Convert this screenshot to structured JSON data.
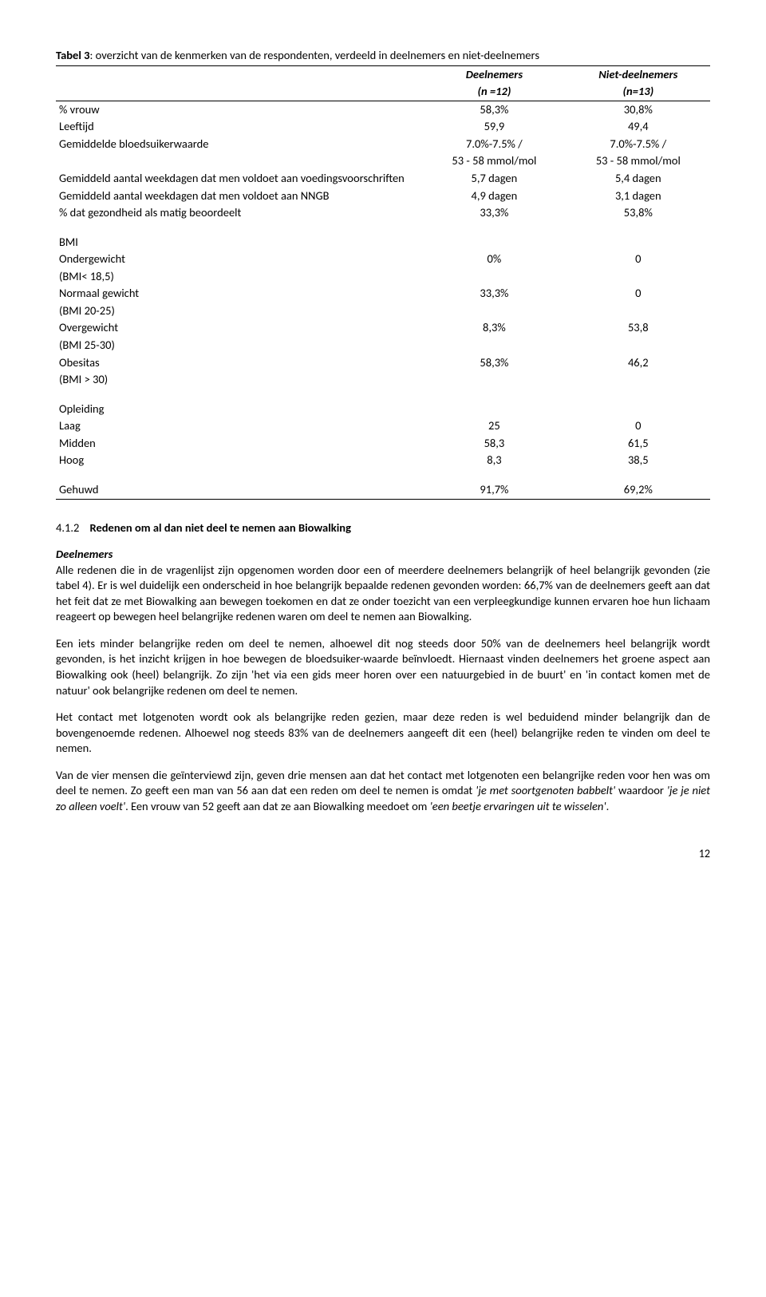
{
  "caption": {
    "label": "Tabel 3",
    "text": ": overzicht van de kenmerken van de respondenten, verdeeld in deelnemers en niet-deelnemers"
  },
  "table": {
    "headers": {
      "c1": "",
      "c2a": "Deelnemers",
      "c2b": "(n =12)",
      "c3a": "Niet-deelnemers",
      "c3b": "(n=13)"
    },
    "rows1": [
      {
        "c1": "% vrouw",
        "c2": "58,3%",
        "c3": "30,8%"
      },
      {
        "c1": "Leeftijd",
        "c2": "59,9",
        "c3": "49,4"
      },
      {
        "c1": "Gemiddelde bloedsuikerwaarde",
        "c2": "7.0%-7.5% /",
        "c3": "7.0%-7.5% /"
      },
      {
        "c1": "",
        "c2": "53 - 58 mmol/mol",
        "c3": "53 - 58 mmol/mol"
      },
      {
        "c1": "Gemiddeld aantal weekdagen dat men voldoet aan voedingsvoorschriften",
        "c2": "5,7 dagen",
        "c3": "5,4 dagen"
      },
      {
        "c1": "Gemiddeld aantal weekdagen dat men voldoet aan NNGB",
        "c2": "4,9 dagen",
        "c3": "3,1 dagen"
      },
      {
        "c1": "% dat gezondheid als matig beoordeelt",
        "c2": "33,3%",
        "c3": "53,8%"
      }
    ],
    "bmi_label": "BMI",
    "rows_bmi": [
      {
        "c1a": "Ondergewicht",
        "c1b": "(BMI< 18,5)",
        "c2": "0%",
        "c3": "0"
      },
      {
        "c1a": "Normaal  gewicht",
        "c1b": "(BMI 20-25)",
        "c2": "33,3%",
        "c3": "0"
      },
      {
        "c1a": "Overgewicht",
        "c1b": "(BMI 25-30)",
        "c2": "8,3%",
        "c3": "53,8"
      },
      {
        "c1a": "Obesitas",
        "c1b": "(BMI > 30)",
        "c2": "58,3%",
        "c3": "46,2"
      }
    ],
    "opl_label": "Opleiding",
    "rows_opl": [
      {
        "c1": "Laag",
        "c2": "25",
        "c3": "0"
      },
      {
        "c1": "Midden",
        "c2": "58,3",
        "c3": "61,5"
      },
      {
        "c1": "Hoog",
        "c2": "8,3",
        "c3": "38,5"
      }
    ],
    "gehuwd": {
      "c1": "Gehuwd",
      "c2": "91,7%",
      "c3": "69,2%"
    }
  },
  "subheading": {
    "num": "4.1.2",
    "title": "Redenen om al dan niet deel te nemen aan Biowalking"
  },
  "deelnemers_label": "Deelnemers",
  "paras": {
    "p1": "Alle redenen die in de vragenlijst zijn opgenomen worden door een of meerdere deelnemers belangrijk of heel belangrijk gevonden (zie tabel 4). Er is wel duidelijk een onderscheid in hoe belangrijk bepaalde redenen gevonden worden: 66,7% van de deelnemers geeft aan dat het feit dat ze met Biowalking aan bewegen toekomen en dat ze onder toezicht van een verpleegkundige kunnen ervaren hoe hun lichaam reageert op bewegen heel belangrijke redenen waren om deel te nemen aan Biowalking.",
    "p2": "Een iets minder belangrijke reden om deel te nemen, alhoewel dit nog steeds door 50% van de deelnemers heel belangrijk wordt gevonden, is het inzicht krijgen in hoe bewegen de bloedsuiker-waarde beïnvloedt.  Hiernaast vinden deelnemers het groene aspect aan Biowalking ook (heel) belangrijk. Zo zijn 'het via een gids meer horen over een natuurgebied in de buurt' en 'in contact komen met de natuur' ook belangrijke redenen om deel te nemen.",
    "p3": "Het contact met lotgenoten wordt ook als belangrijke reden gezien, maar deze reden is wel beduidend minder belangrijk dan de bovengenoemde redenen. Alhoewel nog steeds 83% van de deelnemers aangeeft dit een (heel) belangrijke reden te vinden om deel te nemen.",
    "p4a": "Van de vier mensen die geïnterviewd zijn, geven drie mensen aan dat het contact met lotgenoten een belangrijke reden voor hen was om deel te nemen. Zo geeft  een man van 56 aan dat een reden om deel te nemen is omdat ",
    "p4b": "'je met soortgenoten babbelt'",
    "p4c": " waardoor ",
    "p4d": "'je je niet zo alleen voelt'",
    "p4e": ". Een vrouw van 52 geeft aan dat ze aan Biowalking meedoet om ",
    "p4f": "'een beetje ervaringen uit te wisselen'",
    "p4g": "."
  },
  "page_num": "12"
}
